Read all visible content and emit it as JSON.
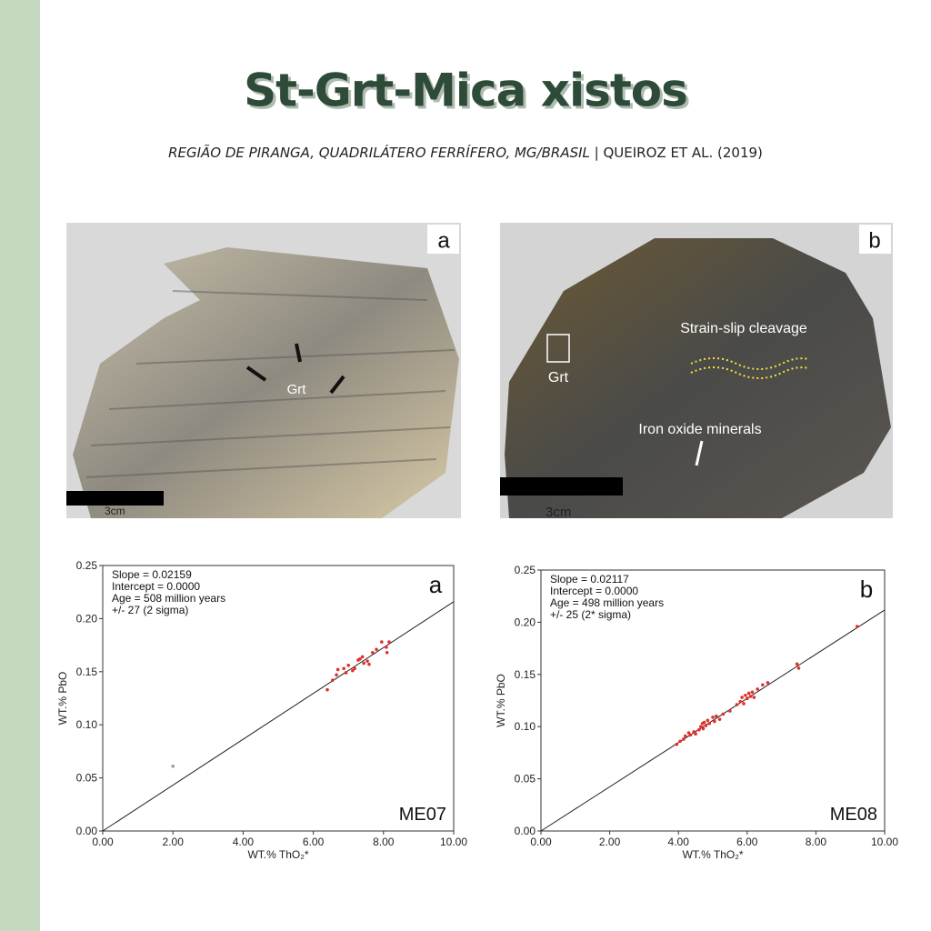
{
  "header": {
    "title": "St-Grt-Mica xistos",
    "subtitle": [
      "REGIÃO DE PIRANGA, QUADRILÁTERO FERRÍFERO, MG/BRASIL",
      "| QUEIROZ ET AL. (2019)"
    ]
  },
  "photos": [
    {
      "letter": "a",
      "labels": [
        "Grt"
      ],
      "scale": "3cm"
    },
    {
      "letter": "b",
      "labels": [
        "Strain-slip cleavage",
        "Grt",
        "Iron oxide minerals"
      ],
      "scale": "3cm"
    }
  ],
  "chart_data": [
    {
      "type": "scatter",
      "letter": "a",
      "sample": "ME07",
      "annotations": [
        "Slope = 0.02159",
        "Intercept = 0.0000",
        "Age = 508 million years",
        "+/- 27 (2 sigma)"
      ],
      "fit": {
        "slope": 0.02159,
        "intercept": 0
      },
      "x_label": "WT.% ThO₂*",
      "y_label": "WT.% PbO",
      "series": [
        {
          "color": "#e0302a",
          "x": [
            6.4,
            6.55,
            6.66,
            6.7,
            6.87,
            7.0,
            7.12,
            7.18,
            7.28,
            7.33,
            7.44,
            7.54,
            7.59,
            7.69,
            7.8,
            7.95,
            8.08,
            8.16,
            8.1,
            7.4,
            6.93
          ],
          "values": [
            0.133,
            0.142,
            0.147,
            0.152,
            0.153,
            0.156,
            0.151,
            0.153,
            0.161,
            0.162,
            0.158,
            0.16,
            0.157,
            0.168,
            0.171,
            0.178,
            0.173,
            0.178,
            0.168,
            0.164,
            0.149
          ]
        },
        {
          "color": "#999999",
          "x": [
            2.0
          ],
          "values": [
            0.061
          ]
        }
      ],
      "xlim": [
        0,
        10
      ],
      "ylim": [
        0,
        0.25
      ],
      "xticks": [
        {
          "value": 0,
          "label": "0.00"
        },
        {
          "value": 2,
          "label": "2.00"
        },
        {
          "value": 4,
          "label": "4.00"
        },
        {
          "value": 6,
          "label": "6.00"
        },
        {
          "value": 8,
          "label": "8.00"
        },
        {
          "value": 10,
          "label": "10.00"
        }
      ],
      "yticks": [
        {
          "value": 0,
          "label": "0.00"
        },
        {
          "value": 0.05,
          "label": "0.05"
        },
        {
          "value": 0.1,
          "label": "0.10"
        },
        {
          "value": 0.15,
          "label": "0.15"
        },
        {
          "value": 0.2,
          "label": "0.20"
        },
        {
          "value": 0.25,
          "label": "0.25"
        }
      ]
    },
    {
      "type": "scatter",
      "letter": "b",
      "sample": "ME08",
      "annotations": [
        "Slope = 0.02117",
        "Intercept = 0.0000",
        "Age = 498 million years",
        "+/- 25 (2* sigma)"
      ],
      "fit": {
        "slope": 0.02117,
        "intercept": 0
      },
      "x_label": "WT.% ThO₂*",
      "y_label": "WT.% PbO",
      "series": [
        {
          "color": "#e0302a",
          "x": [
            3.95,
            4.05,
            4.15,
            4.2,
            4.3,
            4.35,
            4.45,
            4.5,
            4.6,
            4.65,
            4.7,
            4.72,
            4.75,
            4.8,
            4.85,
            4.9,
            5.0,
            5.05,
            5.1,
            5.2,
            5.3,
            5.5,
            5.7,
            5.8,
            5.85,
            5.9,
            5.95,
            6.0,
            6.05,
            6.1,
            6.15,
            6.2,
            6.3,
            6.45,
            6.6,
            7.45,
            7.5,
            9.2
          ],
          "values": [
            0.083,
            0.086,
            0.088,
            0.091,
            0.094,
            0.092,
            0.095,
            0.093,
            0.097,
            0.1,
            0.103,
            0.098,
            0.104,
            0.101,
            0.106,
            0.103,
            0.109,
            0.105,
            0.11,
            0.107,
            0.112,
            0.115,
            0.121,
            0.124,
            0.128,
            0.122,
            0.13,
            0.127,
            0.132,
            0.129,
            0.133,
            0.128,
            0.136,
            0.14,
            0.142,
            0.16,
            0.156,
            0.196
          ]
        }
      ],
      "xlim": [
        0,
        10
      ],
      "ylim": [
        0,
        0.25
      ],
      "xticks": [
        {
          "value": 0,
          "label": "0.00"
        },
        {
          "value": 2,
          "label": "2.00"
        },
        {
          "value": 4,
          "label": "4.00"
        },
        {
          "value": 6,
          "label": "6.00"
        },
        {
          "value": 8,
          "label": "8.00"
        },
        {
          "value": 10,
          "label": "10.00"
        }
      ],
      "yticks": [
        {
          "value": 0,
          "label": "0.00"
        },
        {
          "value": 0.05,
          "label": "0.05"
        },
        {
          "value": 0.1,
          "label": "0.10"
        },
        {
          "value": 0.15,
          "label": "0.15"
        },
        {
          "value": 0.2,
          "label": "0.20"
        },
        {
          "value": 0.25,
          "label": "0.25"
        }
      ]
    }
  ]
}
